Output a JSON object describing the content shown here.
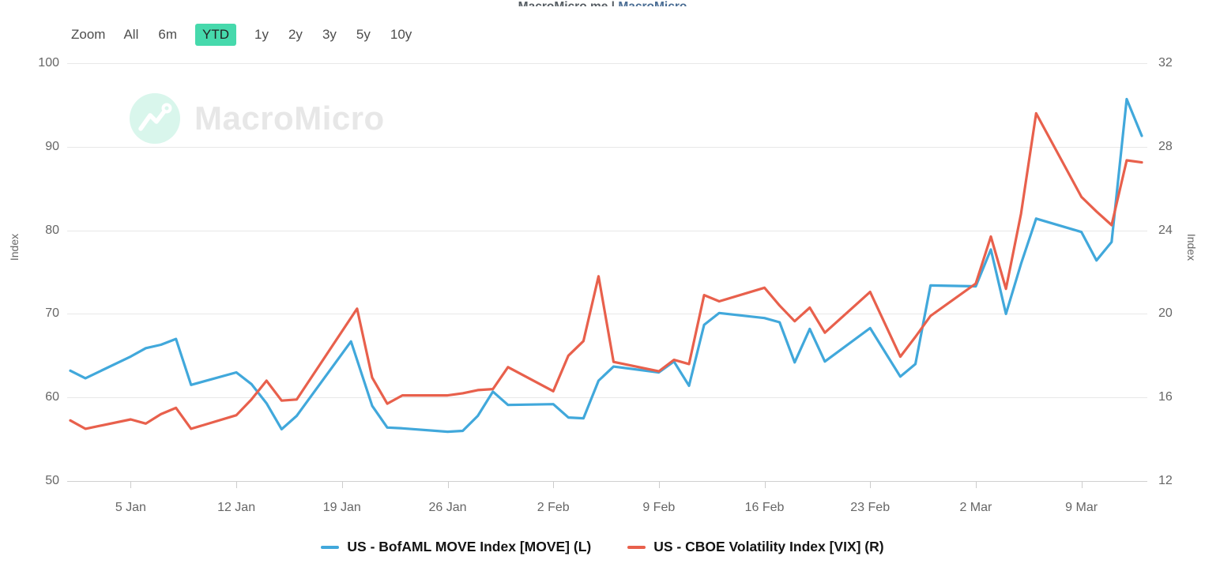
{
  "header": {
    "caption_left": "MacroMicro.me |",
    "caption_right": "MacroMicro"
  },
  "toolbar": {
    "zoom_label": "Zoom",
    "selected_color": "#46d9ac",
    "buttons": [
      {
        "label": "All",
        "selected": false
      },
      {
        "label": "6m",
        "selected": false
      },
      {
        "label": "YTD",
        "selected": true
      },
      {
        "label": "1y",
        "selected": false
      },
      {
        "label": "2y",
        "selected": false
      },
      {
        "label": "3y",
        "selected": false
      },
      {
        "label": "5y",
        "selected": false
      },
      {
        "label": "10y",
        "selected": false
      }
    ]
  },
  "watermark": {
    "text": "MacroMicro"
  },
  "chart_data": {
    "type": "line",
    "title": "",
    "legend_position": "bottom",
    "grid": "horizontal",
    "x_axis": {
      "start_date": "1 Jan",
      "end_date": "13 Mar",
      "day0_date": "1 Jan",
      "total_days": 71,
      "tick_days": [
        4,
        11,
        18,
        25,
        32,
        39,
        46,
        53,
        60,
        67
      ],
      "tick_labels": [
        "5 Jan",
        "12 Jan",
        "19 Jan",
        "26 Jan",
        "2 Feb",
        "9 Feb",
        "16 Feb",
        "23 Feb",
        "2 Mar",
        "9 Mar"
      ]
    },
    "y_axis_left": {
      "label": "Index",
      "min": 50,
      "max": 100,
      "ticks": [
        100,
        90,
        80,
        70,
        60,
        50
      ]
    },
    "y_axis_right": {
      "label": "Index",
      "min": 12,
      "max": 32,
      "ticks": [
        32,
        28,
        24,
        20,
        16,
        12
      ]
    },
    "series": [
      {
        "name": "US - BofAML MOVE Index [MOVE] (L)",
        "id": "move",
        "axis": "left",
        "color": "#41a8db",
        "points": [
          [
            0,
            63.2
          ],
          [
            1,
            62.3
          ],
          [
            4,
            64.9
          ],
          [
            5,
            65.9
          ],
          [
            6,
            66.3
          ],
          [
            7,
            67.0
          ],
          [
            8,
            61.5
          ],
          [
            11,
            63.0
          ],
          [
            12,
            61.6
          ],
          [
            13,
            59.3
          ],
          [
            14,
            56.2
          ],
          [
            15,
            57.8
          ],
          [
            18.6,
            66.7
          ],
          [
            20,
            59.0
          ],
          [
            21,
            56.4
          ],
          [
            22,
            56.3
          ],
          [
            25,
            55.9
          ],
          [
            26,
            56.0
          ],
          [
            27,
            57.8
          ],
          [
            28,
            60.7
          ],
          [
            29,
            59.1
          ],
          [
            32,
            59.2
          ],
          [
            33,
            57.6
          ],
          [
            34,
            57.5
          ],
          [
            35,
            62.0
          ],
          [
            36,
            63.7
          ],
          [
            39,
            63.0
          ],
          [
            40,
            64.3
          ],
          [
            41,
            61.4
          ],
          [
            42,
            68.7
          ],
          [
            43,
            70.1
          ],
          [
            46,
            69.5
          ],
          [
            47,
            69.0
          ],
          [
            48,
            64.2
          ],
          [
            49,
            68.2
          ],
          [
            50,
            64.3
          ],
          [
            53,
            68.3
          ],
          [
            54,
            65.4
          ],
          [
            55,
            62.5
          ],
          [
            56,
            64.0
          ],
          [
            57,
            73.4
          ],
          [
            60,
            73.3
          ],
          [
            61,
            77.7
          ],
          [
            62,
            70.0
          ],
          [
            63,
            76.0
          ],
          [
            64,
            81.4
          ],
          [
            67,
            79.8
          ],
          [
            68,
            76.4
          ],
          [
            69,
            78.6
          ],
          [
            70,
            95.7
          ],
          [
            71,
            91.3
          ]
        ]
      },
      {
        "name": "US - CBOE Volatility Index [VIX] (R)",
        "id": "vix",
        "axis": "right",
        "color": "#e8604c",
        "points": [
          [
            0,
            14.9
          ],
          [
            1,
            14.5
          ],
          [
            4,
            14.95
          ],
          [
            5,
            14.75
          ],
          [
            6,
            15.2
          ],
          [
            7,
            15.5
          ],
          [
            8,
            14.5
          ],
          [
            11,
            15.15
          ],
          [
            12,
            15.9
          ],
          [
            13,
            16.8
          ],
          [
            14,
            15.85
          ],
          [
            15,
            15.9
          ],
          [
            19,
            20.25
          ],
          [
            20,
            16.95
          ],
          [
            21,
            15.7
          ],
          [
            22,
            16.1
          ],
          [
            25,
            16.1
          ],
          [
            26,
            16.2
          ],
          [
            27,
            16.35
          ],
          [
            28,
            16.4
          ],
          [
            29,
            17.45
          ],
          [
            32,
            16.3
          ],
          [
            33,
            18.0
          ],
          [
            34,
            18.7
          ],
          [
            35,
            21.8
          ],
          [
            36,
            17.7
          ],
          [
            39,
            17.25
          ],
          [
            40,
            17.8
          ],
          [
            41,
            17.6
          ],
          [
            42,
            20.9
          ],
          [
            43,
            20.6
          ],
          [
            46,
            21.25
          ],
          [
            47,
            20.4
          ],
          [
            48,
            19.65
          ],
          [
            49,
            20.3
          ],
          [
            50,
            19.1
          ],
          [
            53,
            21.05
          ],
          [
            54,
            19.5
          ],
          [
            55,
            17.95
          ],
          [
            56,
            18.9
          ],
          [
            57,
            19.9
          ],
          [
            60,
            21.45
          ],
          [
            61,
            23.7
          ],
          [
            62,
            21.2
          ],
          [
            63,
            24.8
          ],
          [
            64,
            29.6
          ],
          [
            67,
            25.6
          ],
          [
            68,
            24.9
          ],
          [
            69,
            24.25
          ],
          [
            70,
            27.35
          ],
          [
            71,
            27.25
          ]
        ]
      }
    ]
  }
}
